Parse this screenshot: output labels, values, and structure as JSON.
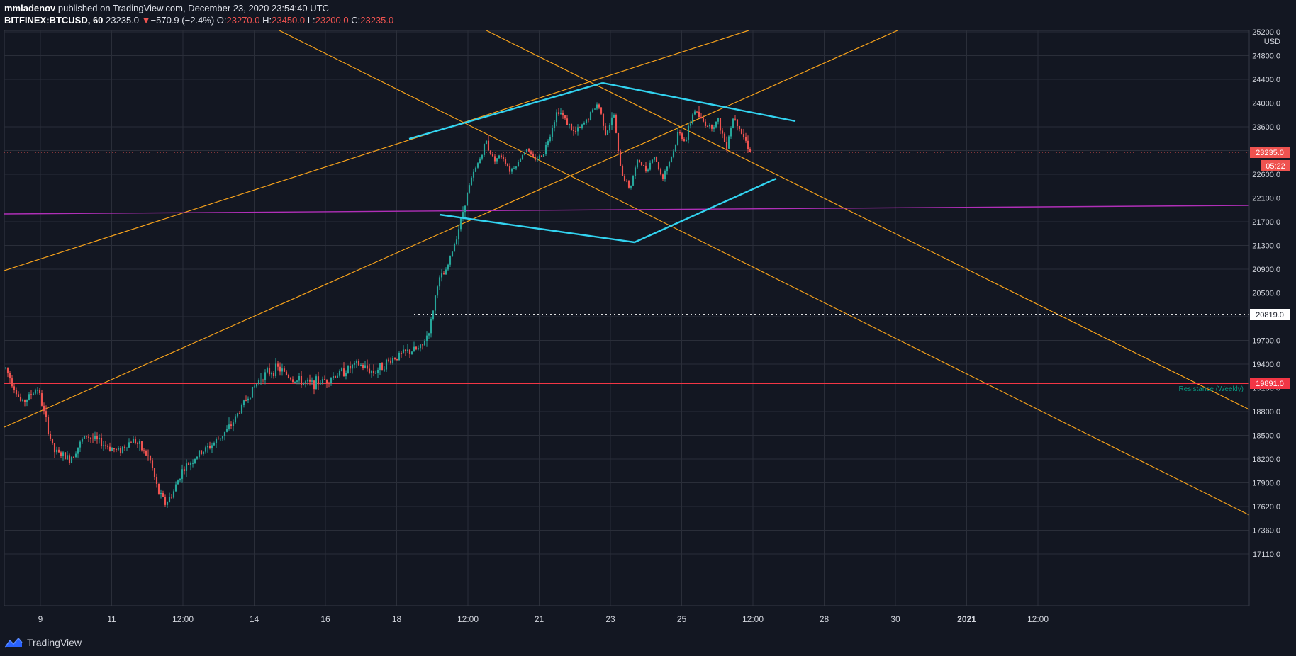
{
  "header": {
    "author": "mmladenov",
    "publish_text": " published on TradingView.com, December 23, 2020 23:54:40 UTC",
    "symbol": "BITFINEX:BTCUSD, 60",
    "last_price": "23235.0",
    "change_arrow": "▼",
    "change": "−570.9 (−2.4%)",
    "open_label": "O:",
    "open": "23270.0",
    "high_label": "H:",
    "high": "23450.0",
    "low_label": "L:",
    "low": "23200.0",
    "close_label": "C:",
    "close": "23235.0"
  },
  "footer": {
    "brand": "TradingView",
    "logo_icon": "tradingview-logo-icon"
  },
  "chart_data": {
    "type": "candlestick",
    "currency": "USD",
    "x_ticks": [
      "9",
      "11",
      "12:00",
      "14",
      "16",
      "18",
      "12:00",
      "21",
      "23",
      "25",
      "12:00",
      "28",
      "30",
      "2021",
      "12:00"
    ],
    "x_ticks_bold": [
      "2021"
    ],
    "y_ticks": [
      "25200.0",
      "24800.0",
      "24400.0",
      "24000.0",
      "23600.0",
      "23235.0",
      "22600.0",
      "22100.0",
      "21700.0",
      "21300.0",
      "20900.0",
      "20500.0",
      "20100.0",
      "19700.0",
      "19400.0",
      "19100.0",
      "18800.0",
      "18500.0",
      "18200.0",
      "17900.0",
      "17620.0",
      "17360.0",
      "17110.0"
    ],
    "price_labels": [
      {
        "value": "23235.0",
        "sublabel": "05:22",
        "color": "#ef5350",
        "role": "last-price"
      },
      {
        "value": "20819.0",
        "color": "#ffffff",
        "role": "horizontal-dotted-level"
      },
      {
        "value": "19891.0",
        "color": "#f23645",
        "role": "resistance-level"
      }
    ],
    "annotations": [
      {
        "text": "Resistance (Weekly)",
        "color": "#089981"
      }
    ],
    "candles_ohlc_last": {
      "open": 23270.0,
      "high": 23450.0,
      "low": 23200.0,
      "close": 23235.0
    },
    "price_path": [
      [
        0,
        19350
      ],
      [
        2,
        18900
      ],
      [
        4,
        19100
      ],
      [
        6,
        18300
      ],
      [
        8,
        18200
      ],
      [
        10,
        18500
      ],
      [
        12,
        18400
      ],
      [
        14,
        18300
      ],
      [
        16,
        18450
      ],
      [
        18,
        18200
      ],
      [
        19,
        17800
      ],
      [
        20,
        17650
      ],
      [
        21,
        17800
      ],
      [
        22,
        18050
      ],
      [
        24,
        18250
      ],
      [
        26,
        18400
      ],
      [
        28,
        18600
      ],
      [
        30,
        18950
      ],
      [
        32,
        19250
      ],
      [
        34,
        19350
      ],
      [
        36,
        19200
      ],
      [
        38,
        19150
      ],
      [
        40,
        19200
      ],
      [
        42,
        19300
      ],
      [
        44,
        19400
      ],
      [
        46,
        19300
      ],
      [
        48,
        19450
      ],
      [
        50,
        19550
      ],
      [
        52,
        19600
      ],
      [
        53,
        19900
      ],
      [
        54,
        20700
      ],
      [
        55,
        20850
      ],
      [
        56,
        21300
      ],
      [
        57,
        21800
      ],
      [
        58,
        22400
      ],
      [
        59,
        22900
      ],
      [
        60,
        23400
      ],
      [
        61,
        23000
      ],
      [
        62,
        23100
      ],
      [
        63,
        22700
      ],
      [
        64,
        22900
      ],
      [
        65,
        23300
      ],
      [
        66,
        23000
      ],
      [
        67,
        23100
      ],
      [
        68,
        23500
      ],
      [
        69,
        23900
      ],
      [
        70,
        23700
      ],
      [
        71,
        23500
      ],
      [
        72,
        23600
      ],
      [
        73,
        23800
      ],
      [
        74,
        24000
      ],
      [
        75,
        23500
      ],
      [
        76,
        23800
      ],
      [
        77,
        22600
      ],
      [
        78,
        22300
      ],
      [
        79,
        23000
      ],
      [
        80,
        22700
      ],
      [
        81,
        23100
      ],
      [
        82,
        22500
      ],
      [
        83,
        23000
      ],
      [
        84,
        23500
      ],
      [
        85,
        23400
      ],
      [
        86,
        23900
      ],
      [
        87,
        23700
      ],
      [
        88,
        23600
      ],
      [
        89,
        23700
      ],
      [
        90,
        23300
      ],
      [
        91,
        23800
      ],
      [
        92,
        23500
      ],
      [
        93,
        23235
      ]
    ],
    "lines": [
      {
        "role": "ascending-channel-lower",
        "color": "#f7a21b"
      },
      {
        "role": "ascending-channel-upper",
        "color": "#f7a21b"
      },
      {
        "role": "ascending-channel-top",
        "color": "#f7a21b"
      },
      {
        "role": "descending-channel-upper",
        "color": "#f7a21b"
      },
      {
        "role": "descending-channel-lower",
        "color": "#f7a21b"
      },
      {
        "role": "diamond-pattern",
        "color": "#32d3f0"
      },
      {
        "role": "horizontal-support",
        "color": "#b02fb8"
      }
    ],
    "grid": true
  },
  "colors": {
    "background": "#131722",
    "grid": "#2a2e39",
    "up_candle": "#26a69a",
    "down_candle": "#ef5350",
    "axis_text": "#d1d4dc"
  }
}
